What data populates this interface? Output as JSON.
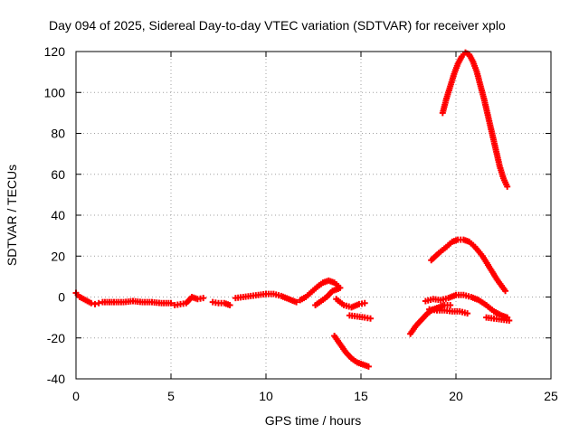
{
  "chart_data": {
    "type": "scatter",
    "title": "Day 094 of 2025, Sidereal Day-to-day VTEC variation (SDTVAR) for receiver xplo",
    "xlabel": "GPS time / hours",
    "ylabel": "SDTVAR / TECUs",
    "xlim": [
      0,
      25
    ],
    "ylim": [
      -40,
      120
    ],
    "xticks": [
      0,
      5,
      10,
      15,
      20,
      25
    ],
    "yticks": [
      -40,
      -20,
      0,
      20,
      40,
      60,
      80,
      100,
      120
    ],
    "grid": true,
    "marker": "+",
    "color": "#ff0000",
    "series": [
      {
        "name": "s1",
        "x": [
          0,
          0.2,
          0.4,
          0.6,
          0.8,
          1.0,
          1.2
        ],
        "y": [
          2,
          0,
          -1,
          -2,
          -3,
          -3.5,
          -3
        ]
      },
      {
        "name": "s2",
        "x": [
          1.4,
          2.0,
          2.5,
          3.0,
          3.5,
          4.0,
          4.5,
          5.0
        ],
        "y": [
          -2.5,
          -2.5,
          -2.5,
          -2,
          -2.5,
          -2.5,
          -3,
          -3
        ]
      },
      {
        "name": "s3",
        "x": [
          5.2,
          5.5,
          5.8,
          6.1,
          6.4,
          6.7
        ],
        "y": [
          -4,
          -3.5,
          -3,
          0,
          -1,
          -0.5
        ]
      },
      {
        "name": "s4",
        "x": [
          7.2,
          7.5,
          7.8,
          8.1
        ],
        "y": [
          -2.5,
          -3,
          -3,
          -4
        ]
      },
      {
        "name": "s5",
        "x": [
          8.4,
          8.8,
          9.2,
          9.6,
          10.0,
          10.4,
          10.8,
          11.2,
          11.6
        ],
        "y": [
          -0.5,
          0,
          0.5,
          1,
          1.5,
          1.5,
          0.5,
          -1,
          -2.5
        ]
      },
      {
        "name": "s6",
        "x": [
          11.8,
          12.1,
          12.4,
          12.7,
          13.0,
          13.3,
          13.6,
          13.9
        ],
        "y": [
          -1.5,
          0,
          2.5,
          5,
          7,
          8,
          7,
          4.5
        ]
      },
      {
        "name": "s7",
        "x": [
          12.6,
          12.9,
          13.2,
          13.5,
          13.8
        ],
        "y": [
          -4,
          -2,
          0,
          3,
          4
        ]
      },
      {
        "name": "s8",
        "x": [
          13.7,
          14.1,
          14.5,
          14.9,
          15.2
        ],
        "y": [
          -1,
          -4,
          -5,
          -3.5,
          -3
        ]
      },
      {
        "name": "s9",
        "x": [
          14.4,
          14.8,
          15.2,
          15.5
        ],
        "y": [
          -9,
          -9.5,
          -10,
          -10.5
        ]
      },
      {
        "name": "s10",
        "x": [
          13.6,
          13.9,
          14.2,
          14.5,
          14.8,
          15.1,
          15.4
        ],
        "y": [
          -19,
          -23,
          -27,
          -30,
          -32,
          -33,
          -34
        ]
      },
      {
        "name": "s11",
        "x": [
          17.6,
          17.9,
          18.2,
          18.5,
          18.8,
          19.1,
          19.4,
          19.7
        ],
        "y": [
          -18,
          -14,
          -11,
          -8,
          -6,
          -5,
          -4,
          -4
        ]
      },
      {
        "name": "s12",
        "x": [
          18.4,
          18.8,
          19.2,
          19.6,
          20.0,
          20.4,
          20.8,
          21.2,
          21.6,
          22.0,
          22.4,
          22.7
        ],
        "y": [
          -2,
          -1,
          -1.5,
          -0.5,
          1,
          1,
          0,
          -1.5,
          -4,
          -7,
          -9,
          -10
        ]
      },
      {
        "name": "s13",
        "x": [
          18.6,
          19.0,
          19.4,
          19.8,
          20.2,
          20.6
        ],
        "y": [
          -6,
          -6.5,
          -6.5,
          -7,
          -7,
          -8
        ]
      },
      {
        "name": "s14",
        "x": [
          21.6,
          22.0,
          22.4,
          22.8
        ],
        "y": [
          -10,
          -10.5,
          -11,
          -11.5
        ]
      },
      {
        "name": "s15",
        "x": [
          18.7,
          19.1,
          19.5,
          19.8,
          20.1,
          20.4,
          20.7,
          21.0,
          21.4,
          21.8,
          22.2,
          22.6
        ],
        "y": [
          18,
          21.5,
          24.5,
          27,
          28,
          28,
          27,
          24.5,
          20,
          14,
          8,
          3
        ]
      },
      {
        "name": "s16",
        "x": [
          19.3,
          19.5,
          19.7,
          19.9,
          20.1,
          20.3,
          20.5,
          20.7,
          20.9,
          21.1,
          21.3,
          21.5,
          21.7,
          21.9,
          22.1,
          22.3,
          22.5,
          22.7
        ],
        "y": [
          90,
          97,
          103,
          109,
          114,
          117.5,
          119.5,
          118.5,
          115,
          110,
          103,
          96,
          88,
          80,
          72,
          64,
          58,
          54
        ]
      }
    ]
  }
}
